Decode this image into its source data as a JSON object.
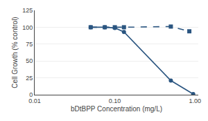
{
  "chart_data": {
    "type": "line",
    "xlabel": "bDtBPP Concentration (mg/L)",
    "ylabel": "Cell Growth (% control)",
    "series": [
      {
        "x": [
          0.05,
          0.075,
          0.1,
          0.13,
          0.5,
          0.95
        ],
        "values": [
          100,
          100,
          99,
          93,
          21,
          1
        ],
        "color": "#2a5580",
        "marker": "circle",
        "line_style": "solid"
      },
      {
        "x": [
          0.05,
          0.075,
          0.1,
          0.13,
          0.5,
          0.85
        ],
        "values": [
          100,
          100,
          100,
          100,
          101,
          94
        ],
        "color": "#2a5580",
        "marker": "square",
        "line_style": "dashed"
      }
    ],
    "log": "x",
    "xlim": [
      0.01,
      1.1
    ],
    "xticks": [
      0.01,
      {
        "value": 0.1,
        "label": "0.10"
      },
      {
        "value": 1,
        "label": "1.00"
      }
    ],
    "ylim": [
      0,
      125
    ],
    "yticks": [
      0,
      25,
      50,
      75,
      100,
      125
    ],
    "grid": "y"
  }
}
